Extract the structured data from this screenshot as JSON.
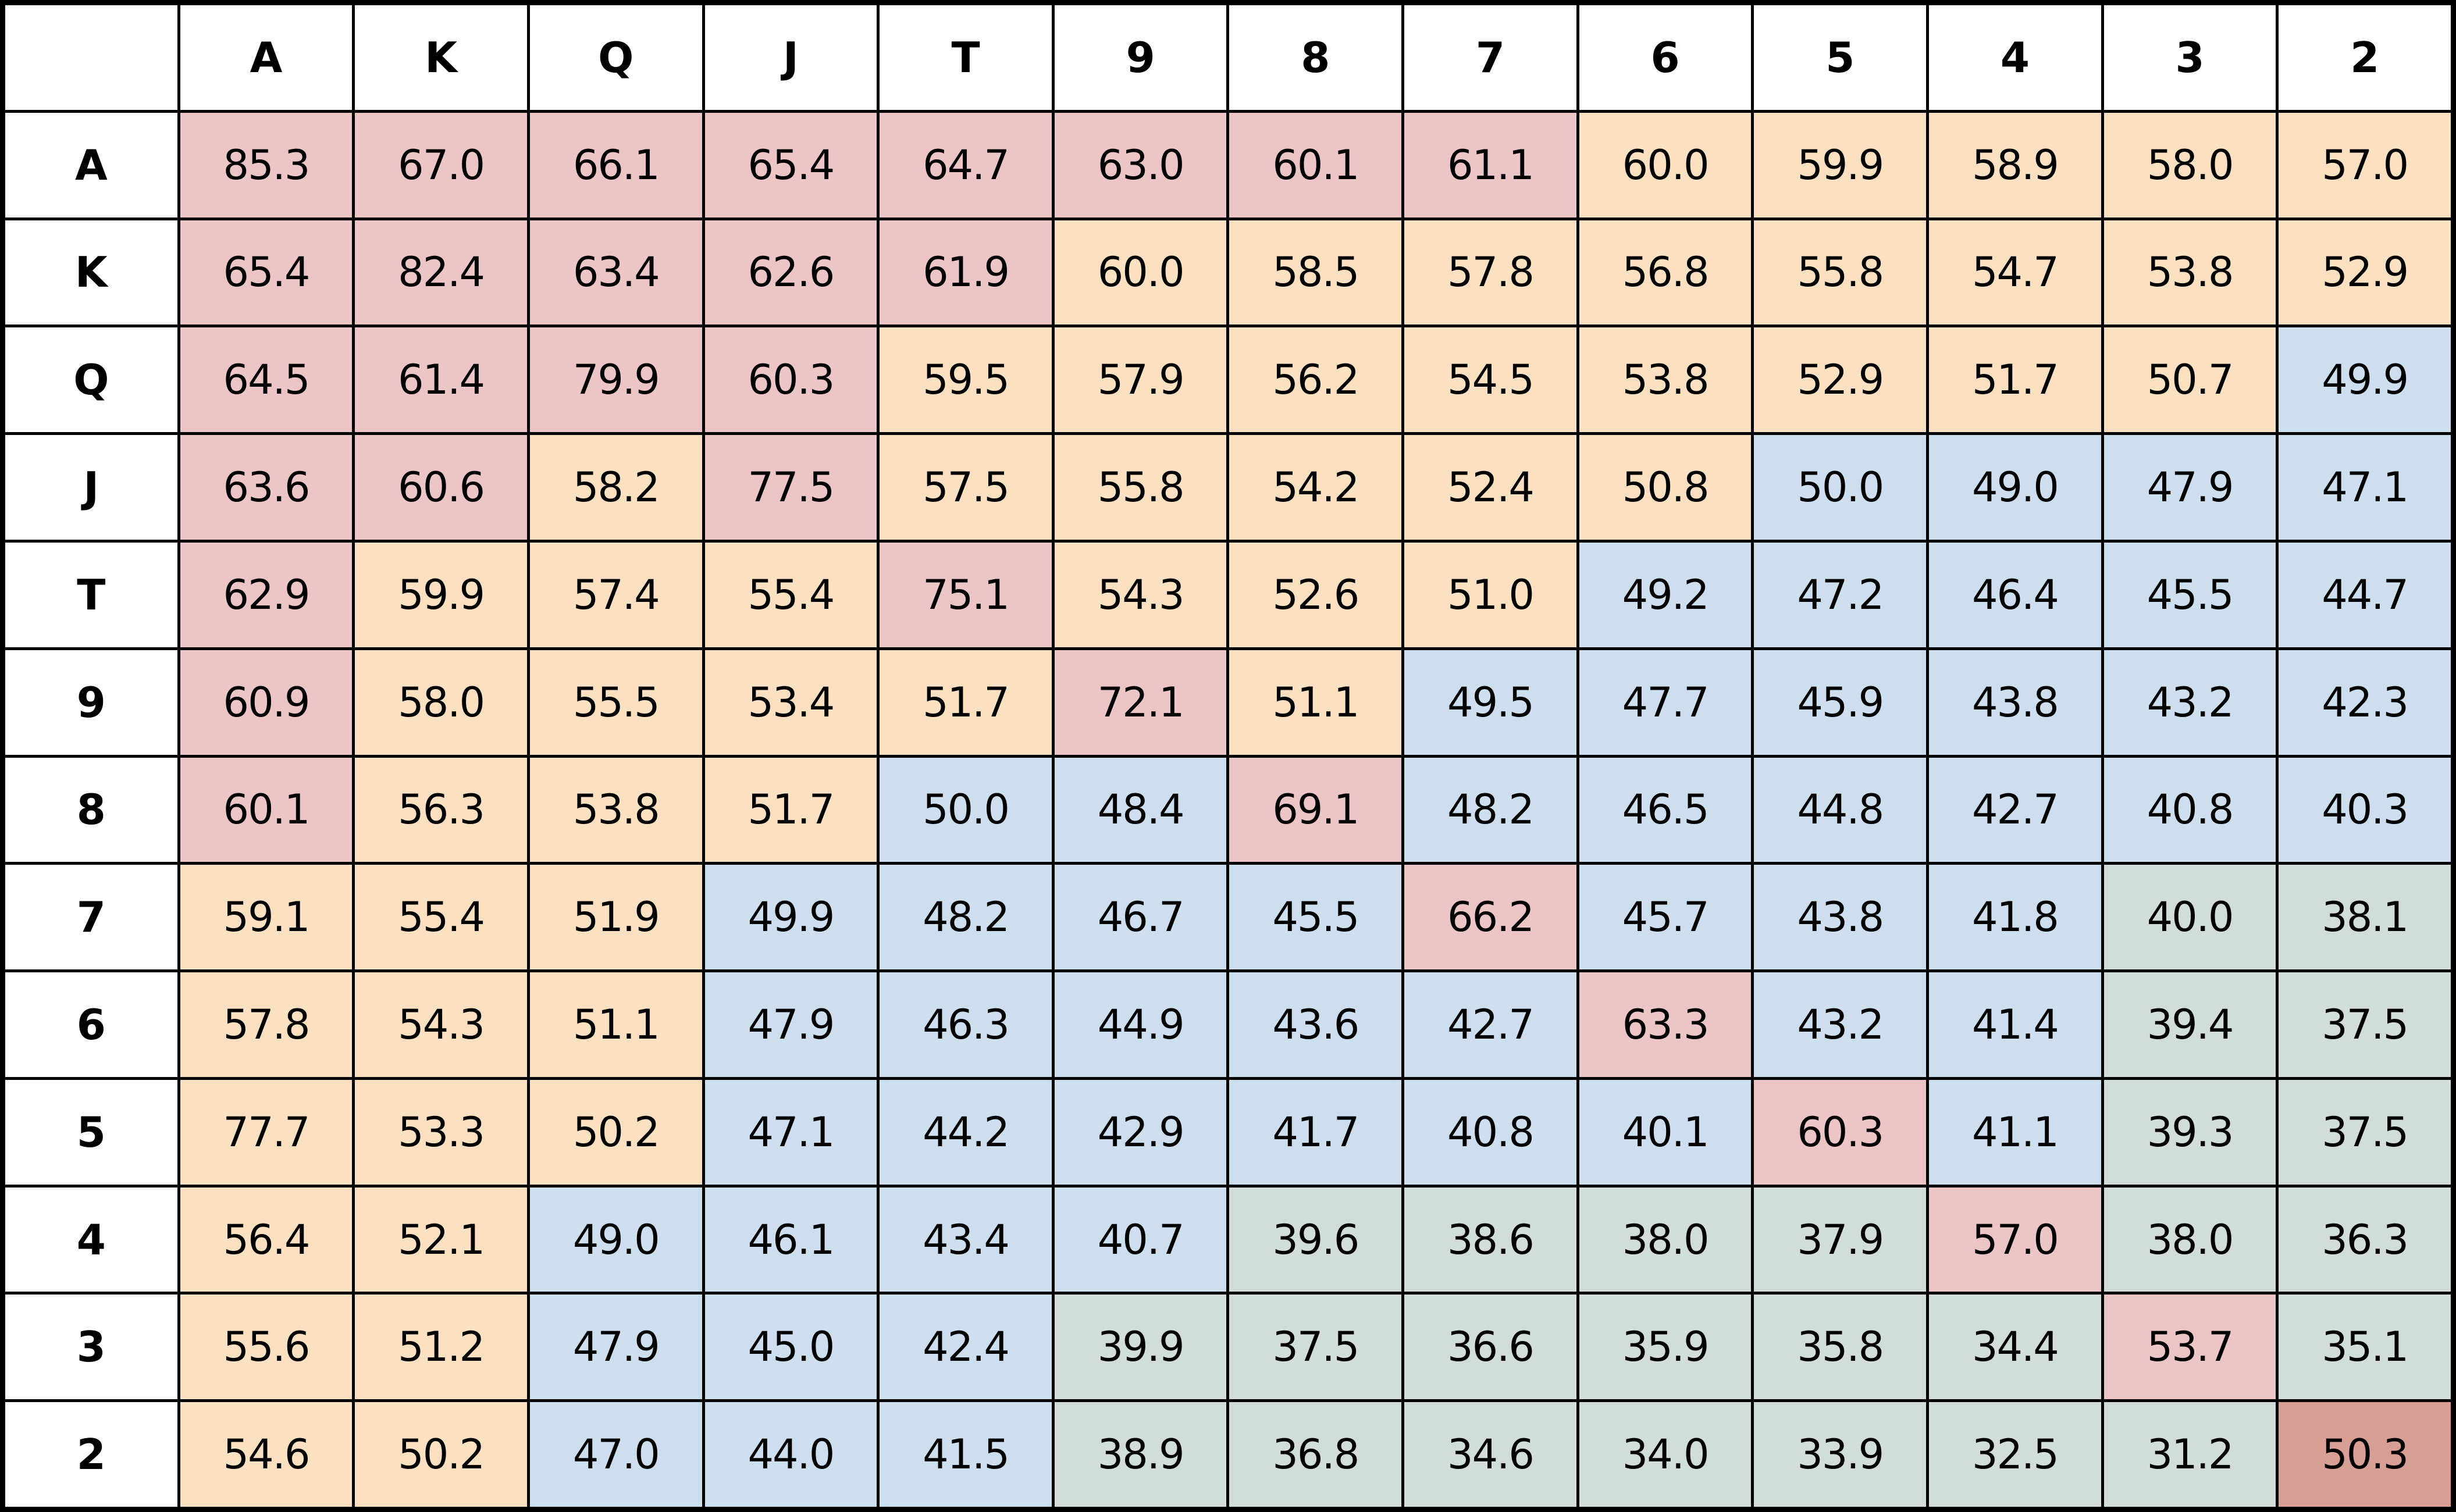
{
  "chart_data": {
    "type": "heatmap",
    "corner_label": "",
    "x_categories": [
      "A",
      "K",
      "Q",
      "J",
      "T",
      "9",
      "8",
      "7",
      "6",
      "5",
      "4",
      "3",
      "2"
    ],
    "y_categories": [
      "A",
      "K",
      "Q",
      "J",
      "T",
      "9",
      "8",
      "7",
      "6",
      "5",
      "4",
      "3",
      "2"
    ],
    "matrix": [
      [
        "85.3",
        "67.0",
        "66.1",
        "65.4",
        "64.7",
        "63.0",
        "60.1",
        "61.1",
        "60.0",
        "59.9",
        "58.9",
        "58.0",
        "57.0"
      ],
      [
        "65.4",
        "82.4",
        "63.4",
        "62.6",
        "61.9",
        "60.0",
        "58.5",
        "57.8",
        "56.8",
        "55.8",
        "54.7",
        "53.8",
        "52.9"
      ],
      [
        "64.5",
        "61.4",
        "79.9",
        "60.3",
        "59.5",
        "57.9",
        "56.2",
        "54.5",
        "53.8",
        "52.9",
        "51.7",
        "50.7",
        "49.9"
      ],
      [
        "63.6",
        "60.6",
        "58.2",
        "77.5",
        "57.5",
        "55.8",
        "54.2",
        "52.4",
        "50.8",
        "50.0",
        "49.0",
        "47.9",
        "47.1"
      ],
      [
        "62.9",
        "59.9",
        "57.4",
        "55.4",
        "75.1",
        "54.3",
        "52.6",
        "51.0",
        "49.2",
        "47.2",
        "46.4",
        "45.5",
        "44.7"
      ],
      [
        "60.9",
        "58.0",
        "55.5",
        "53.4",
        "51.7",
        "72.1",
        "51.1",
        "49.5",
        "47.7",
        "45.9",
        "43.8",
        "43.2",
        "42.3"
      ],
      [
        "60.1",
        "56.3",
        "53.8",
        "51.7",
        "50.0",
        "48.4",
        "69.1",
        "48.2",
        "46.5",
        "44.8",
        "42.7",
        "40.8",
        "40.3"
      ],
      [
        "59.1",
        "55.4",
        "51.9",
        "49.9",
        "48.2",
        "46.7",
        "45.5",
        "66.2",
        "45.7",
        "43.8",
        "41.8",
        "40.0",
        "38.1"
      ],
      [
        "57.8",
        "54.3",
        "51.1",
        "47.9",
        "46.3",
        "44.9",
        "43.6",
        "42.7",
        "63.3",
        "43.2",
        "41.4",
        "39.4",
        "37.5"
      ],
      [
        "77.7",
        "53.3",
        "50.2",
        "47.1",
        "44.2",
        "42.9",
        "41.7",
        "40.8",
        "40.1",
        "60.3",
        "41.1",
        "39.3",
        "37.5"
      ],
      [
        "56.4",
        "52.1",
        "49.0",
        "46.1",
        "43.4",
        "40.7",
        "39.6",
        "38.6",
        "38.0",
        "37.9",
        "57.0",
        "38.0",
        "36.3"
      ],
      [
        "55.6",
        "51.2",
        "47.9",
        "45.0",
        "42.4",
        "39.9",
        "37.5",
        "36.6",
        "35.9",
        "35.8",
        "34.4",
        "53.7",
        "35.1"
      ],
      [
        "54.6",
        "50.2",
        "47.0",
        "44.0",
        "41.5",
        "38.9",
        "36.8",
        "34.6",
        "34.0",
        "33.9",
        "32.5",
        "31.2",
        "50.3"
      ]
    ],
    "cell_colors": [
      [
        "r",
        "r",
        "r",
        "r",
        "r",
        "r",
        "r",
        "r",
        "o",
        "o",
        "o",
        "o",
        "o"
      ],
      [
        "r",
        "r",
        "r",
        "r",
        "r",
        "o",
        "o",
        "o",
        "o",
        "o",
        "o",
        "o",
        "o"
      ],
      [
        "r",
        "r",
        "r",
        "r",
        "o",
        "o",
        "o",
        "o",
        "o",
        "o",
        "o",
        "o",
        "b"
      ],
      [
        "r",
        "r",
        "o",
        "r",
        "o",
        "o",
        "o",
        "o",
        "o",
        "b",
        "b",
        "b",
        "b"
      ],
      [
        "r",
        "o",
        "o",
        "o",
        "r",
        "o",
        "o",
        "o",
        "b",
        "b",
        "b",
        "b",
        "b"
      ],
      [
        "r",
        "o",
        "o",
        "o",
        "o",
        "r",
        "o",
        "b",
        "b",
        "b",
        "b",
        "b",
        "b"
      ],
      [
        "r",
        "o",
        "o",
        "o",
        "b",
        "b",
        "r",
        "b",
        "b",
        "b",
        "b",
        "b",
        "b"
      ],
      [
        "o",
        "o",
        "o",
        "b",
        "b",
        "b",
        "b",
        "r",
        "b",
        "b",
        "b",
        "g",
        "g"
      ],
      [
        "o",
        "o",
        "o",
        "b",
        "b",
        "b",
        "b",
        "b",
        "r",
        "b",
        "b",
        "g",
        "g"
      ],
      [
        "o",
        "o",
        "o",
        "b",
        "b",
        "b",
        "b",
        "b",
        "b",
        "r",
        "b",
        "g",
        "g"
      ],
      [
        "o",
        "o",
        "b",
        "b",
        "b",
        "b",
        "g",
        "g",
        "g",
        "g",
        "r",
        "g",
        "g"
      ],
      [
        "o",
        "o",
        "b",
        "b",
        "b",
        "g",
        "g",
        "g",
        "g",
        "g",
        "g",
        "r",
        "g"
      ],
      [
        "o",
        "o",
        "b",
        "b",
        "b",
        "g",
        "g",
        "g",
        "g",
        "g",
        "g",
        "g",
        "s"
      ]
    ],
    "palette": {
      "r": "#ecc5c7",
      "o": "#fbe0c1",
      "b": "#cddfee",
      "g": "#d2ddd9",
      "s": "#d8a094",
      "header_bg": "#ffffff",
      "grid_line": "#000000",
      "text": "#000000"
    }
  }
}
